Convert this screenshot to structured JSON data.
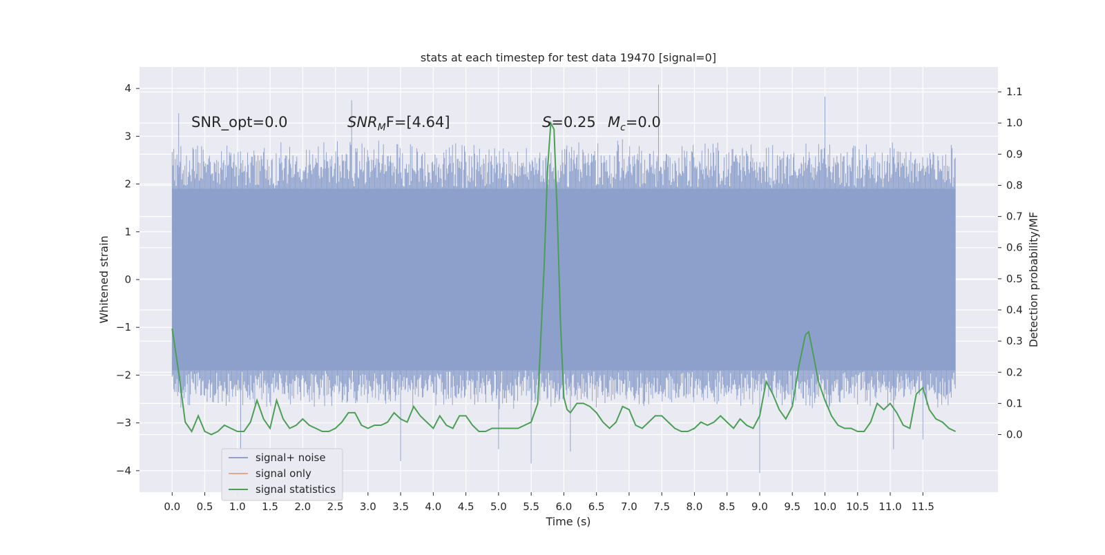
{
  "chart_data": {
    "type": "line",
    "title": "stats at each timestep for test data 19470 [signal=0]",
    "xlabel": "Time (s)",
    "ylabel": "Whitened strain",
    "y2label": "Detection probability/MF",
    "xlim": [
      -0.5,
      12.65
    ],
    "ylim": [
      -4.45,
      4.45
    ],
    "y2lim": [
      -0.185,
      1.18
    ],
    "x_ticks": [
      "0.0",
      "0.5",
      "1.0",
      "1.5",
      "2.0",
      "2.5",
      "3.0",
      "3.5",
      "4.0",
      "4.5",
      "5.0",
      "5.5",
      "6.0",
      "6.5",
      "7.0",
      "7.5",
      "8.0",
      "8.5",
      "9.0",
      "9.5",
      "10.0",
      "10.5",
      "11.0",
      "11.5"
    ],
    "y_ticks": [
      "4",
      "3",
      "2",
      "1",
      "0",
      "−1",
      "−2",
      "−3",
      "−4"
    ],
    "y2_ticks": [
      "1.1",
      "1.0",
      "0.9",
      "0.8",
      "0.7",
      "0.6",
      "0.5",
      "0.4",
      "0.3",
      "0.2",
      "0.1",
      "0.0"
    ],
    "grid": true,
    "legend_position": "lower-left",
    "annotations": {
      "snr_opt": "SNR_opt=0.0",
      "snr_mf_main": "SNR",
      "snr_mf_sub": "M",
      "snr_mf_rest": "F=[4.64]",
      "s_main": "S",
      "s_rest": "=0.25",
      "mc_main": "M",
      "mc_sub": "c",
      "mc_rest": "=0.0"
    },
    "series": [
      {
        "name": "signal+ noise",
        "color": "#8da0cb",
        "axis": "left",
        "x_range": [
          0.0,
          12.0
        ],
        "envelope_upper": 2.8,
        "envelope_lower": -2.6,
        "dense_band": [
          -1.9,
          1.9
        ],
        "extremes": [
          [
            0.1,
            3.48
          ],
          [
            1.05,
            -3.6
          ],
          [
            2.75,
            3.75
          ],
          [
            3.5,
            -3.8
          ],
          [
            5.0,
            -3.55
          ],
          [
            5.5,
            -3.85
          ],
          [
            6.1,
            -3.6
          ],
          [
            7.45,
            4.08
          ],
          [
            9.0,
            -4.05
          ],
          [
            10.0,
            3.83
          ],
          [
            11.05,
            -3.55
          ],
          [
            11.5,
            -3.35
          ]
        ]
      },
      {
        "name": "signal only",
        "color": "#e8a48b",
        "axis": "left",
        "x": [],
        "y": []
      },
      {
        "name": "signal statistics",
        "color": "#4a9f54",
        "axis": "right",
        "x": [
          0.0,
          0.1,
          0.2,
          0.3,
          0.4,
          0.5,
          0.6,
          0.7,
          0.8,
          0.9,
          1.0,
          1.1,
          1.2,
          1.3,
          1.4,
          1.5,
          1.6,
          1.7,
          1.8,
          1.9,
          2.0,
          2.1,
          2.2,
          2.3,
          2.4,
          2.5,
          2.6,
          2.7,
          2.8,
          2.9,
          3.0,
          3.1,
          3.2,
          3.3,
          3.4,
          3.5,
          3.6,
          3.7,
          3.8,
          3.9,
          4.0,
          4.1,
          4.2,
          4.3,
          4.4,
          4.5,
          4.6,
          4.7,
          4.8,
          4.9,
          5.0,
          5.1,
          5.2,
          5.3,
          5.4,
          5.5,
          5.6,
          5.7,
          5.75,
          5.8,
          5.85,
          5.9,
          5.95,
          6.0,
          6.05,
          6.1,
          6.2,
          6.3,
          6.4,
          6.5,
          6.6,
          6.7,
          6.8,
          6.9,
          7.0,
          7.1,
          7.2,
          7.3,
          7.4,
          7.5,
          7.6,
          7.7,
          7.8,
          7.9,
          8.0,
          8.1,
          8.2,
          8.3,
          8.4,
          8.5,
          8.6,
          8.7,
          8.8,
          8.9,
          9.0,
          9.1,
          9.2,
          9.3,
          9.4,
          9.5,
          9.6,
          9.7,
          9.75,
          9.8,
          9.9,
          10.0,
          10.1,
          10.2,
          10.3,
          10.4,
          10.5,
          10.6,
          10.7,
          10.8,
          10.9,
          11.0,
          11.1,
          11.2,
          11.3,
          11.4,
          11.5,
          11.6,
          11.7,
          11.8,
          11.9,
          12.0
        ],
        "y": [
          0.34,
          0.2,
          0.04,
          0.01,
          0.06,
          0.01,
          0.0,
          0.01,
          0.03,
          0.02,
          0.01,
          0.01,
          0.04,
          0.11,
          0.05,
          0.02,
          0.11,
          0.05,
          0.02,
          0.03,
          0.05,
          0.03,
          0.02,
          0.01,
          0.01,
          0.02,
          0.04,
          0.07,
          0.07,
          0.03,
          0.02,
          0.03,
          0.03,
          0.04,
          0.07,
          0.05,
          0.04,
          0.09,
          0.06,
          0.04,
          0.02,
          0.06,
          0.03,
          0.02,
          0.06,
          0.06,
          0.03,
          0.01,
          0.01,
          0.02,
          0.02,
          0.02,
          0.02,
          0.02,
          0.03,
          0.04,
          0.1,
          0.55,
          0.85,
          1.0,
          0.98,
          0.7,
          0.35,
          0.12,
          0.08,
          0.07,
          0.1,
          0.1,
          0.09,
          0.07,
          0.04,
          0.02,
          0.04,
          0.09,
          0.08,
          0.03,
          0.02,
          0.04,
          0.06,
          0.06,
          0.04,
          0.02,
          0.01,
          0.01,
          0.02,
          0.04,
          0.03,
          0.04,
          0.06,
          0.04,
          0.02,
          0.05,
          0.03,
          0.02,
          0.06,
          0.17,
          0.13,
          0.08,
          0.05,
          0.09,
          0.22,
          0.32,
          0.33,
          0.28,
          0.17,
          0.11,
          0.06,
          0.03,
          0.02,
          0.02,
          0.01,
          0.01,
          0.04,
          0.1,
          0.08,
          0.1,
          0.07,
          0.03,
          0.02,
          0.13,
          0.15,
          0.08,
          0.05,
          0.04,
          0.02,
          0.01
        ]
      }
    ]
  }
}
